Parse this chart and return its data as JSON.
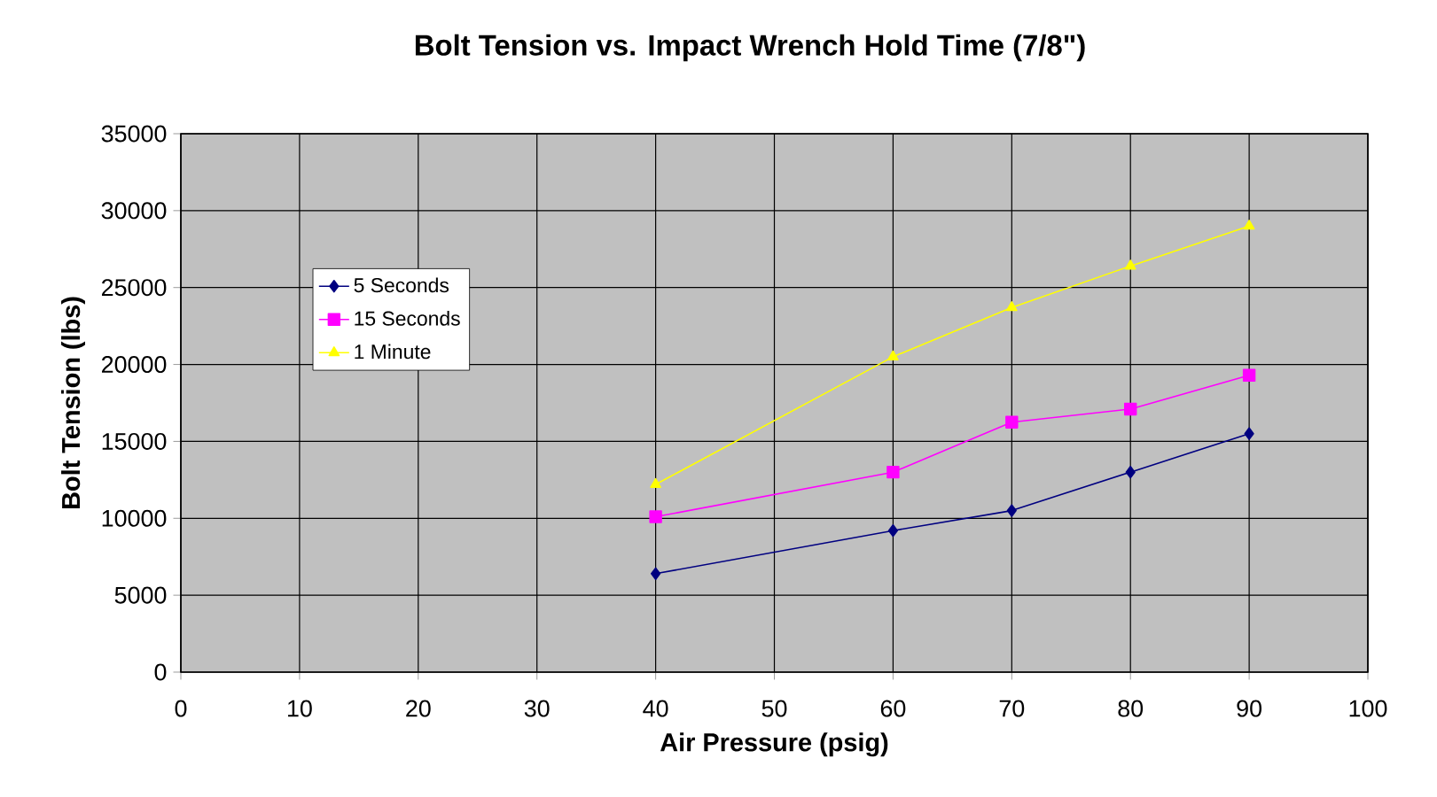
{
  "chart_data": {
    "type": "line",
    "title": "Bolt Tension vs. Impact Wrench Hold Time  (7/8\")",
    "xlabel": "Air Pressure (psig)",
    "ylabel": "Bolt Tension (lbs)",
    "x": [
      40,
      60,
      70,
      80,
      90
    ],
    "series": [
      {
        "name": "5 Seconds",
        "color": "#000080",
        "marker": "diamond",
        "values": [
          6400,
          9200,
          10500,
          13000,
          15500
        ]
      },
      {
        "name": "15 Seconds",
        "color": "#ff00ff",
        "marker": "square",
        "values": [
          10100,
          13000,
          16250,
          17100,
          19300
        ]
      },
      {
        "name": "1 Minute",
        "color": "#ffff00",
        "marker": "triangle",
        "values": [
          12200,
          20500,
          23700,
          26400,
          29000
        ]
      }
    ],
    "xlim": [
      0,
      100
    ],
    "xticks": [
      0,
      10,
      20,
      30,
      40,
      50,
      60,
      70,
      80,
      90,
      100
    ],
    "ylim": [
      0,
      35000
    ],
    "yticks": [
      0,
      5000,
      10000,
      15000,
      20000,
      25000,
      30000,
      35000
    ],
    "grid": true,
    "legend": "top left",
    "line_style": "solid"
  }
}
